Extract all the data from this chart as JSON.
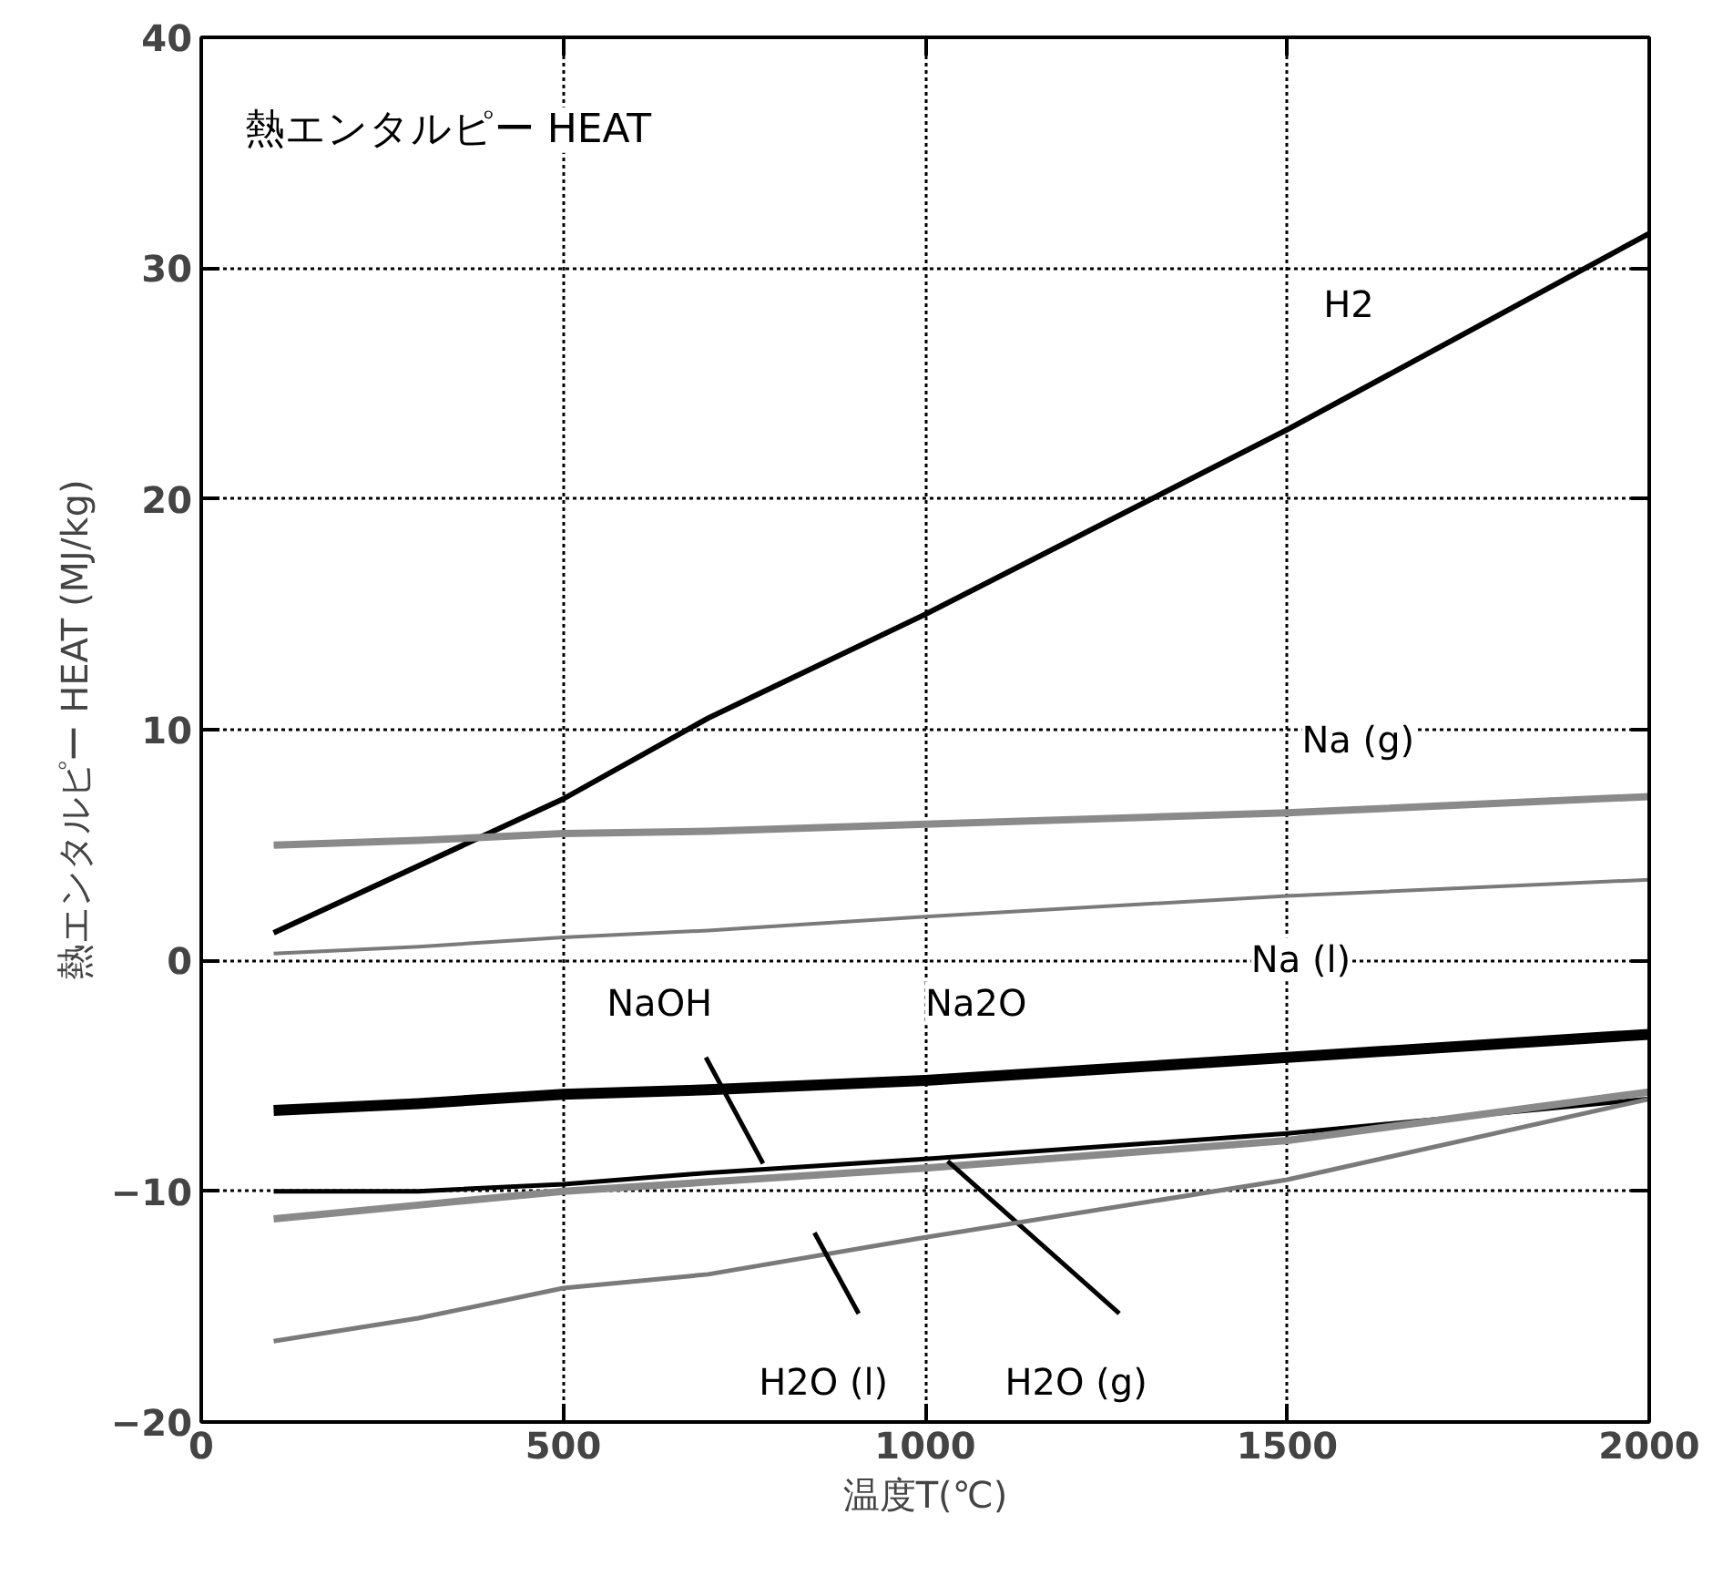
{
  "chart_data": {
    "type": "line",
    "title": "熱エンタルピー HEAT",
    "xlabel": "温度T(℃)",
    "ylabel": "熱エンタルピー HEAT (MJ/kg)",
    "xlim": [
      0,
      2000
    ],
    "xticks": [
      0,
      500,
      1000,
      1500,
      2000
    ],
    "ylim": [
      -20,
      40
    ],
    "yticks": [
      -20,
      -10,
      0,
      10,
      20,
      30,
      40
    ],
    "grid": true,
    "marker": "none",
    "x": [
      100,
      300,
      500,
      700,
      1000,
      1500,
      2000
    ],
    "series": [
      {
        "name": "H2",
        "color": "#000000",
        "values": [
          1.2,
          4.1,
          7.0,
          10.5,
          15.0,
          23.0,
          31.5
        ]
      },
      {
        "name": "Na (g)",
        "color": "#8a8a8a",
        "values": [
          5.0,
          5.2,
          5.5,
          5.6,
          5.9,
          6.4,
          7.1
        ]
      },
      {
        "name": "Na (l)",
        "color": "#7a7a7a",
        "values": [
          0.3,
          0.6,
          1.0,
          1.3,
          1.9,
          2.8,
          3.5
        ]
      },
      {
        "name": "Na2O",
        "color": "#000000",
        "values": [
          -6.5,
          -6.2,
          -5.8,
          -5.6,
          -5.2,
          -4.2,
          -3.2
        ]
      },
      {
        "name": "NaOH",
        "color": "#000000",
        "values": [
          -10.0,
          -10.0,
          -9.7,
          -9.2,
          -8.6,
          -7.5,
          -6.0
        ]
      },
      {
        "name": "H2O (g)",
        "color": "#8a8a8a",
        "values": [
          -11.2,
          -10.6,
          -10.0,
          -9.6,
          -9.0,
          -7.8,
          -5.7
        ]
      },
      {
        "name": "H2O (l)",
        "color": "#7a7a7a",
        "values": [
          -16.5,
          -15.5,
          -14.2,
          -13.6,
          -12.0,
          -9.5,
          -6.0
        ]
      }
    ]
  }
}
